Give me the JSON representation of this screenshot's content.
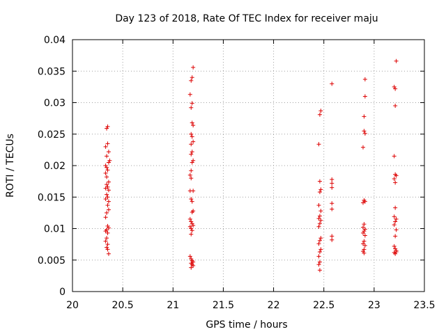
{
  "chart_data": {
    "type": "scatter",
    "title": "Day 123 of 2018, Rate Of TEC Index for receiver maju",
    "xlabel": "GPS time / hours",
    "ylabel": "ROTI / TECUs",
    "xlim": [
      20,
      23.5
    ],
    "ylim": [
      0,
      0.04
    ],
    "grid": true,
    "marker": "+",
    "marker_color": "#dd0000",
    "x_ticks": [
      "20",
      "20.5",
      "21",
      "21.5",
      "22",
      "22.5",
      "23",
      "23.5"
    ],
    "y_ticks": [
      "0",
      "0.005",
      "0.01",
      "0.015",
      "0.02",
      "0.025",
      "0.03",
      "0.035",
      "0.04"
    ],
    "x_tick_values": [
      20,
      20.5,
      21,
      21.5,
      22,
      22.5,
      23,
      23.5
    ],
    "y_tick_values": [
      0,
      0.005,
      0.01,
      0.015,
      0.02,
      0.025,
      0.03,
      0.035,
      0.04
    ],
    "series": [
      {
        "name": "ROTI",
        "points": [
          [
            20.34,
            0.0259
          ],
          [
            20.35,
            0.0262
          ],
          [
            20.33,
            0.023
          ],
          [
            20.35,
            0.0235
          ],
          [
            20.34,
            0.0215
          ],
          [
            20.36,
            0.0222
          ],
          [
            20.36,
            0.0205
          ],
          [
            20.37,
            0.0208
          ],
          [
            20.33,
            0.02
          ],
          [
            20.34,
            0.0197
          ],
          [
            20.35,
            0.0193
          ],
          [
            20.33,
            0.0188
          ],
          [
            20.34,
            0.0182
          ],
          [
            20.36,
            0.0174
          ],
          [
            20.34,
            0.017
          ],
          [
            20.35,
            0.0166
          ],
          [
            20.33,
            0.0164
          ],
          [
            20.36,
            0.0161
          ],
          [
            20.34,
            0.0154
          ],
          [
            20.35,
            0.015
          ],
          [
            20.33,
            0.0147
          ],
          [
            20.36,
            0.0143
          ],
          [
            20.35,
            0.0137
          ],
          [
            20.36,
            0.013
          ],
          [
            20.34,
            0.0125
          ],
          [
            20.33,
            0.0118
          ],
          [
            20.35,
            0.0104
          ],
          [
            20.36,
            0.0101
          ],
          [
            20.34,
            0.0098
          ],
          [
            20.33,
            0.0096
          ],
          [
            20.35,
            0.0093
          ],
          [
            20.34,
            0.0085
          ],
          [
            20.33,
            0.008
          ],
          [
            20.35,
            0.0075
          ],
          [
            20.34,
            0.007
          ],
          [
            20.35,
            0.0067
          ],
          [
            20.36,
            0.006
          ],
          [
            21.2,
            0.0356
          ],
          [
            21.19,
            0.034
          ],
          [
            21.18,
            0.0335
          ],
          [
            21.17,
            0.0313
          ],
          [
            21.19,
            0.0299
          ],
          [
            21.18,
            0.0292
          ],
          [
            21.19,
            0.0268
          ],
          [
            21.2,
            0.0264
          ],
          [
            21.18,
            0.025
          ],
          [
            21.19,
            0.0246
          ],
          [
            21.2,
            0.0238
          ],
          [
            21.18,
            0.0234
          ],
          [
            21.19,
            0.0222
          ],
          [
            21.18,
            0.0218
          ],
          [
            21.2,
            0.0208
          ],
          [
            21.19,
            0.0205
          ],
          [
            21.18,
            0.0192
          ],
          [
            21.17,
            0.0185
          ],
          [
            21.18,
            0.018
          ],
          [
            21.17,
            0.016
          ],
          [
            21.2,
            0.016
          ],
          [
            21.18,
            0.0147
          ],
          [
            21.19,
            0.0143
          ],
          [
            21.2,
            0.0128
          ],
          [
            21.19,
            0.0126
          ],
          [
            21.17,
            0.0115
          ],
          [
            21.18,
            0.0111
          ],
          [
            21.19,
            0.0108
          ],
          [
            21.2,
            0.0105
          ],
          [
            21.17,
            0.0103
          ],
          [
            21.18,
            0.01
          ],
          [
            21.19,
            0.0097
          ],
          [
            21.18,
            0.0091
          ],
          [
            21.17,
            0.0056
          ],
          [
            21.18,
            0.0052
          ],
          [
            21.19,
            0.0049
          ],
          [
            21.2,
            0.0047
          ],
          [
            21.18,
            0.0045
          ],
          [
            21.19,
            0.0043
          ],
          [
            21.2,
            0.0041
          ],
          [
            21.18,
            0.0038
          ],
          [
            22.47,
            0.0287
          ],
          [
            22.46,
            0.0281
          ],
          [
            22.45,
            0.0234
          ],
          [
            22.46,
            0.0175
          ],
          [
            22.47,
            0.0162
          ],
          [
            22.46,
            0.0158
          ],
          [
            22.45,
            0.0137
          ],
          [
            22.47,
            0.0128
          ],
          [
            22.46,
            0.012
          ],
          [
            22.45,
            0.0116
          ],
          [
            22.47,
            0.0113
          ],
          [
            22.46,
            0.0108
          ],
          [
            22.45,
            0.0103
          ],
          [
            22.47,
            0.0085
          ],
          [
            22.46,
            0.0081
          ],
          [
            22.45,
            0.0076
          ],
          [
            22.47,
            0.0067
          ],
          [
            22.46,
            0.0063
          ],
          [
            22.45,
            0.0056
          ],
          [
            22.46,
            0.0047
          ],
          [
            22.45,
            0.0043
          ],
          [
            22.46,
            0.0034
          ],
          [
            22.58,
            0.033
          ],
          [
            22.58,
            0.0178
          ],
          [
            22.58,
            0.0172
          ],
          [
            22.58,
            0.0165
          ],
          [
            22.58,
            0.014
          ],
          [
            22.58,
            0.0131
          ],
          [
            22.58,
            0.0088
          ],
          [
            22.58,
            0.0082
          ],
          [
            22.91,
            0.0337
          ],
          [
            22.91,
            0.031
          ],
          [
            22.9,
            0.0278
          ],
          [
            22.9,
            0.0255
          ],
          [
            22.91,
            0.0251
          ],
          [
            22.89,
            0.0229
          ],
          [
            22.9,
            0.0145
          ],
          [
            22.91,
            0.0143
          ],
          [
            22.89,
            0.0141
          ],
          [
            22.9,
            0.0107
          ],
          [
            22.89,
            0.0102
          ],
          [
            22.91,
            0.0099
          ],
          [
            22.9,
            0.0096
          ],
          [
            22.89,
            0.0093
          ],
          [
            22.91,
            0.0089
          ],
          [
            22.9,
            0.008
          ],
          [
            22.89,
            0.0076
          ],
          [
            22.91,
            0.0073
          ],
          [
            22.9,
            0.0067
          ],
          [
            22.89,
            0.0064
          ],
          [
            22.9,
            0.0061
          ],
          [
            23.22,
            0.0366
          ],
          [
            23.2,
            0.0325
          ],
          [
            23.21,
            0.0322
          ],
          [
            23.21,
            0.0295
          ],
          [
            23.2,
            0.0215
          ],
          [
            23.21,
            0.0186
          ],
          [
            23.22,
            0.0184
          ],
          [
            23.2,
            0.0179
          ],
          [
            23.21,
            0.0173
          ],
          [
            23.21,
            0.0133
          ],
          [
            23.2,
            0.0119
          ],
          [
            23.22,
            0.0115
          ],
          [
            23.21,
            0.0111
          ],
          [
            23.2,
            0.0106
          ],
          [
            23.22,
            0.0098
          ],
          [
            23.21,
            0.0088
          ],
          [
            23.2,
            0.0072
          ],
          [
            23.21,
            0.0068
          ],
          [
            23.22,
            0.0065
          ],
          [
            23.2,
            0.0062
          ],
          [
            23.21,
            0.006
          ],
          [
            23.22,
            0.0063
          ]
        ]
      }
    ]
  }
}
